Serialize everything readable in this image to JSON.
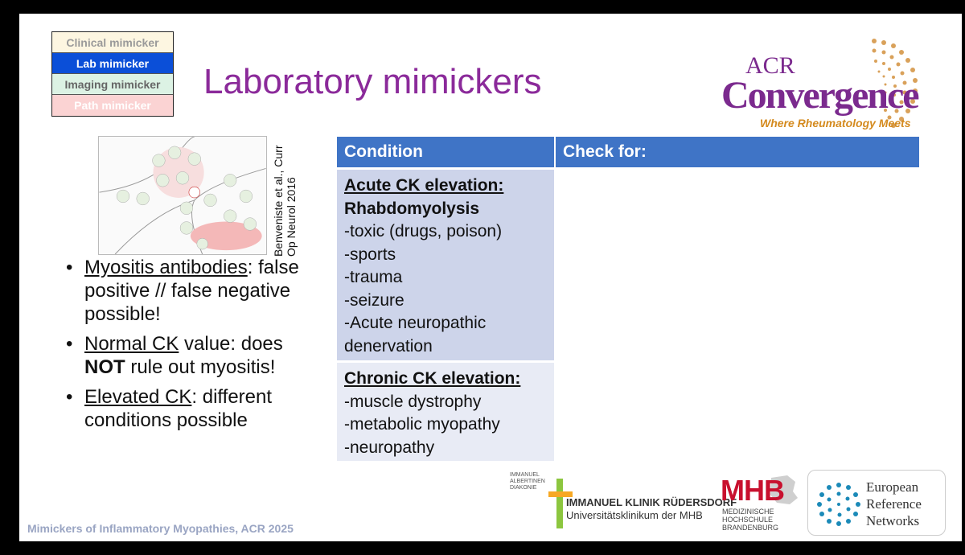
{
  "legend": {
    "clinical": "Clinical mimicker",
    "lab": "Lab mimicker",
    "imaging": "Imaging mimicker",
    "path": "Path mimicker"
  },
  "title": "Laboratory mimickers",
  "acr_logo": {
    "small": "ACR",
    "big": "Convergence",
    "tagline": "Where Rheumatology Meets"
  },
  "citation": "Benveniste et al., Curr Op Neurol 2016",
  "bullets": [
    {
      "underlined": "Myositis antibodies",
      "rest": ": false positive // false negative possible!"
    },
    {
      "underlined": "Normal CK",
      "pre": " value: does ",
      "bold": "NOT",
      "post": " rule out myositis!"
    },
    {
      "underlined": "Elevated CK",
      "rest": ": different conditions possible"
    }
  ],
  "table": {
    "headers": [
      "Condition",
      "Check for:"
    ],
    "row1": {
      "heading": "Acute CK elevation:",
      "subheading": "Rhabdomyolysis",
      "items": [
        "-toxic (drugs, poison)",
        "-sports",
        "-trauma",
        "-seizure",
        "-Acute neuropathic denervation"
      ]
    },
    "row2": {
      "heading": "Chronic CK elevation:",
      "items": [
        "-muscle dystrophy",
        "-metabolic myopathy",
        "-neuropathy"
      ]
    }
  },
  "footer": "Mimickers of Inflammatory Myopathies, ACR 2025",
  "logos": {
    "immanuel_small": "IMMANUEL ALBERTINEN DIAKONIE",
    "immanuel_name": "IMMANUEL KLINIK RÜDERSDORF",
    "immanuel_sub": "Universitätsklinikum der MHB",
    "mhb_letters": "MHB",
    "mhb_text": [
      "MEDIZINISCHE",
      "HOCHSCHULE",
      "BRANDENBURG"
    ],
    "ern_text": [
      "European",
      "Reference",
      "Networks"
    ]
  },
  "colors": {
    "title": "#8b2a9a",
    "table_header": "#3f74c6",
    "cell_dark": "#cdd4ea",
    "cell_light": "#e8ebf5",
    "footer": "#9aa5c3"
  }
}
